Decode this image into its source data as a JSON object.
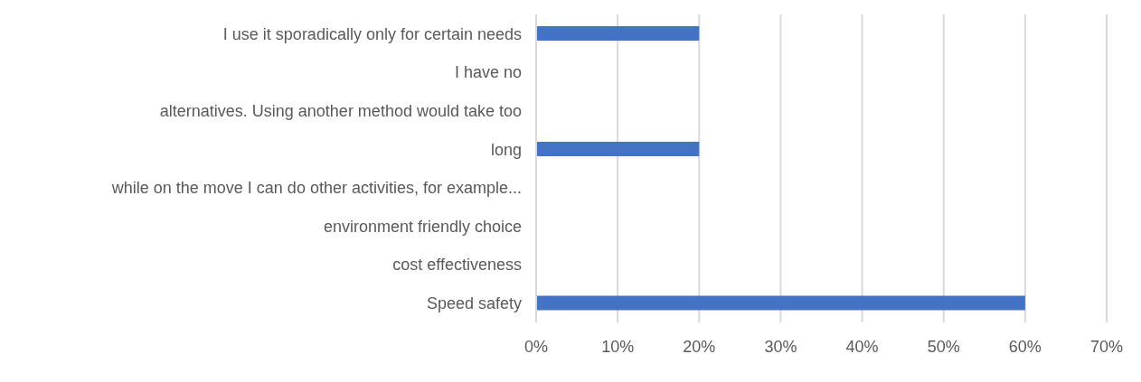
{
  "chart_data": {
    "type": "bar",
    "orientation": "horizontal",
    "categories": [
      "I use it sporadically only for certain needs",
      "I have no",
      "alternatives. Using another method would take too",
      "long",
      "while on the move I can do other activities, for example...",
      "environment friendly choice",
      "cost effectiveness",
      "Speed safety"
    ],
    "values": [
      20,
      0,
      0,
      20,
      0,
      0,
      0,
      60
    ],
    "color": "#4472c4",
    "xlim": [
      0,
      70
    ],
    "xticks": [
      {
        "value": 0,
        "label": "0%"
      },
      {
        "value": 10,
        "label": "10%"
      },
      {
        "value": 20,
        "label": "20%"
      },
      {
        "value": 30,
        "label": "30%"
      },
      {
        "value": 40,
        "label": "40%"
      },
      {
        "value": 50,
        "label": "50%"
      },
      {
        "value": 60,
        "label": "60%"
      },
      {
        "value": 70,
        "label": "70%"
      }
    ],
    "grid": "x"
  }
}
